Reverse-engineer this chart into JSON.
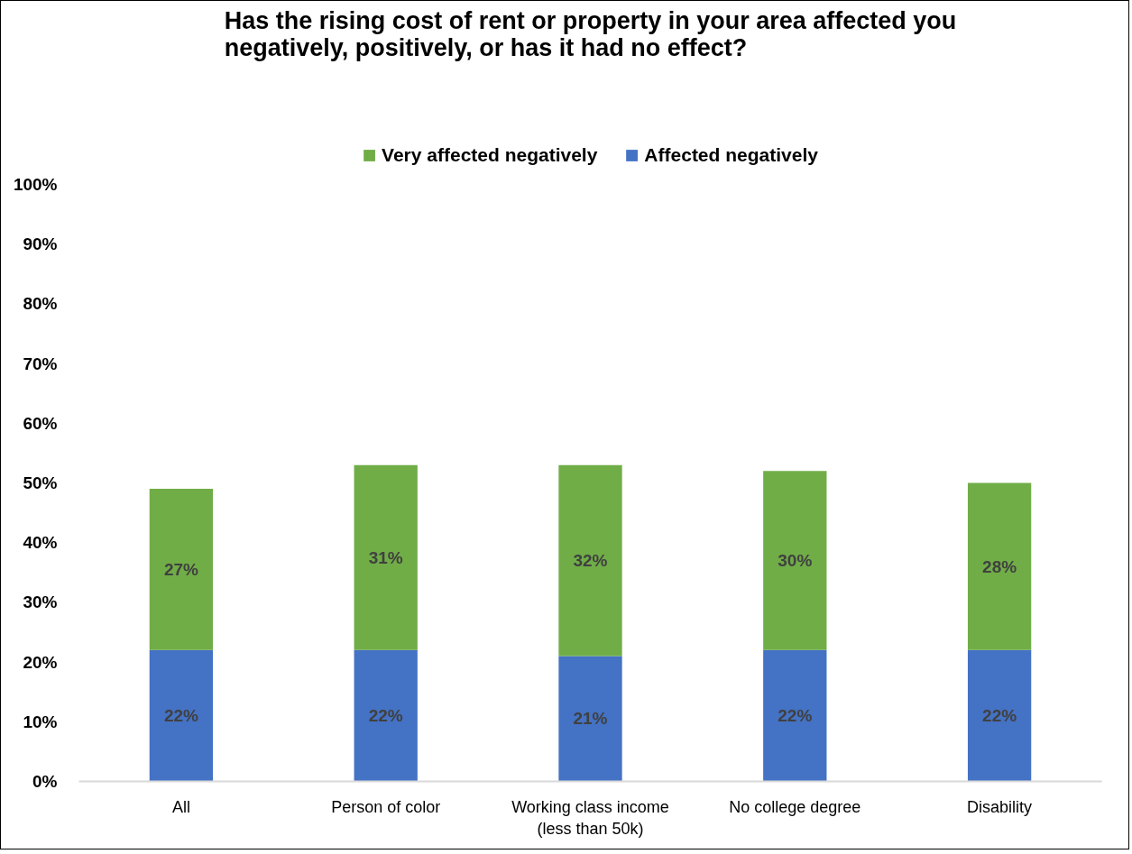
{
  "chart_data": {
    "type": "bar",
    "title": "Has the rising cost of rent or property in your area affected you negatively, positively, or has it had no effect?",
    "categories": [
      "All",
      "Person of color",
      "Working class income (less than 50k)",
      "No college degree",
      "Disability"
    ],
    "stacked": true,
    "series": [
      {
        "name": "Affected negatively",
        "color": "#4472c4",
        "values": [
          22,
          22,
          21,
          22,
          22
        ],
        "value_labels": [
          "22%",
          "22%",
          "21%",
          "22%",
          "22%"
        ]
      },
      {
        "name": "Very affected negatively",
        "color": "#70ad47",
        "values": [
          27,
          31,
          32,
          30,
          28
        ],
        "value_labels": [
          "27%",
          "31%",
          "32%",
          "30%",
          "28%"
        ]
      }
    ],
    "ylim": [
      0,
      100
    ],
    "yticks": [
      {
        "value": 0,
        "label": "0%"
      },
      {
        "value": 10,
        "label": "10%"
      },
      {
        "value": 20,
        "label": "20%"
      },
      {
        "value": 30,
        "label": "30%"
      },
      {
        "value": 40,
        "label": "40%"
      },
      {
        "value": 50,
        "label": "50%"
      },
      {
        "value": 60,
        "label": "60%"
      },
      {
        "value": 70,
        "label": "70%"
      },
      {
        "value": 80,
        "label": "80%"
      },
      {
        "value": 90,
        "label": "90%"
      },
      {
        "value": 100,
        "label": "100%"
      }
    ],
    "grid": false,
    "legend": "top"
  }
}
